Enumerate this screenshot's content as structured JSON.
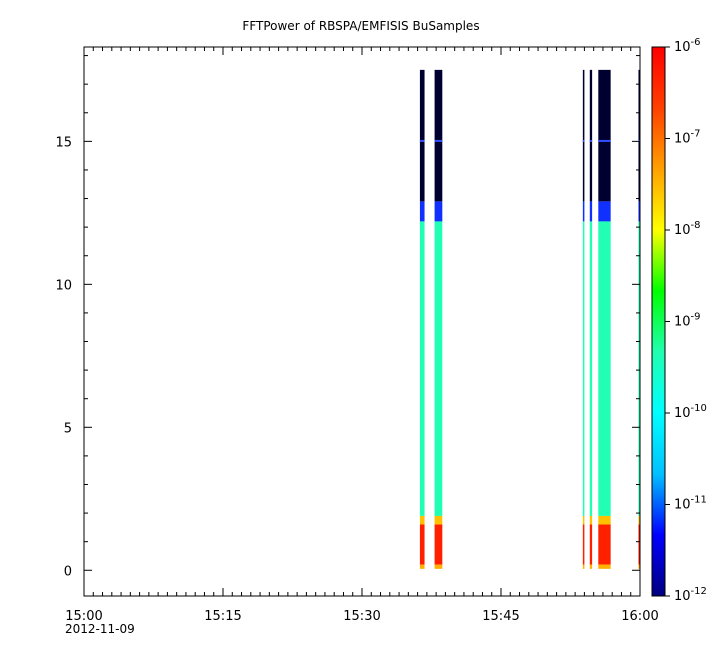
{
  "chart_data": {
    "type": "heatmap",
    "title": "FFTPower of RBSPA/EMFISIS  BuSamples",
    "xlabel": "",
    "ylabel": "",
    "x_axis": {
      "type": "time",
      "range": [
        "15:00",
        "16:00"
      ],
      "date_label": "2012-11-09",
      "ticks": [
        {
          "time": "15:00",
          "label": "15:00"
        },
        {
          "time": "15:15",
          "label": "15:15"
        },
        {
          "time": "15:30",
          "label": "15:30"
        },
        {
          "time": "15:45",
          "label": "15:45"
        },
        {
          "time": "16:00",
          "label": "16:00"
        }
      ]
    },
    "y_axis": {
      "range": [
        -0.9,
        18.3
      ],
      "ticks": [
        {
          "value": 0,
          "label": "0"
        },
        {
          "value": 5,
          "label": "5"
        },
        {
          "value": 10,
          "label": "10"
        },
        {
          "value": 15,
          "label": "15"
        }
      ]
    },
    "colorbar": {
      "scale": "log",
      "range": [
        1e-12,
        1e-06
      ],
      "ticks": [
        {
          "value": 1e-06,
          "base": "10",
          "exp": "-6"
        },
        {
          "value": 1e-07,
          "base": "10",
          "exp": "-7"
        },
        {
          "value": 1e-08,
          "base": "10",
          "exp": "-8"
        },
        {
          "value": 1e-09,
          "base": "10",
          "exp": "-9"
        },
        {
          "value": 1e-10,
          "base": "10",
          "exp": "-10"
        },
        {
          "value": 1e-11,
          "base": "10",
          "exp": "-11"
        },
        {
          "value": 1e-12,
          "base": "10",
          "exp": "-12"
        }
      ],
      "colors": [
        "#000080",
        "#0000ff",
        "#00c0ff",
        "#00ffff",
        "#20ffb0",
        "#00ff00",
        "#ffff00",
        "#ffa000",
        "#ff4000",
        "#ff0000"
      ]
    },
    "frequency_bands": [
      {
        "from": 17.5,
        "to": 12.9,
        "level": "low",
        "color": "#000030"
      },
      {
        "from": 12.9,
        "to": 12.2,
        "level": "blue",
        "color": "#1030ff"
      },
      {
        "from": 12.2,
        "to": 1.9,
        "level": "cyan-green",
        "color": "#20ffb4"
      },
      {
        "from": 1.9,
        "to": 1.6,
        "level": "yellow",
        "color": "#ffc000"
      },
      {
        "from": 1.6,
        "to": 0.2,
        "level": "red",
        "color": "#ff2000"
      },
      {
        "from": 0.2,
        "to": 0.05,
        "level": "orange",
        "color": "#ffb000"
      }
    ],
    "segments": [
      {
        "start": "15:36:15",
        "end": "15:36:45"
      },
      {
        "start": "15:37:50",
        "end": "15:38:40"
      },
      {
        "start": "15:53:50",
        "end": "15:54:00"
      },
      {
        "start": "15:54:35",
        "end": "15:54:50"
      },
      {
        "start": "15:55:30",
        "end": "15:56:50"
      },
      {
        "start": "15:59:50",
        "end": "16:00:00"
      }
    ]
  }
}
